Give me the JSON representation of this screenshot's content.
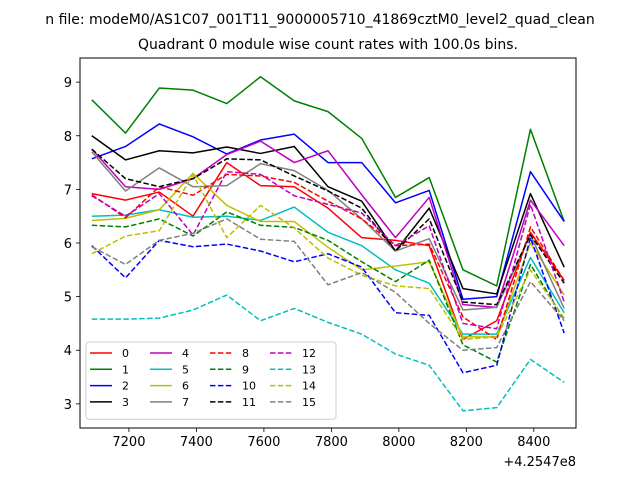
{
  "chart_data": {
    "type": "line",
    "suptitle": "n file: modeM0/AS1C07_001T11_9000005710_41869cztM0_level2_quad_clean",
    "title": "Quadrant 0 module wise count rates with 100.0s bins.",
    "xlabel": "",
    "ylabel": "",
    "x_offset_label": "+4.2547e8",
    "xlim": [
      7055,
      8525
    ],
    "ylim": [
      2.55,
      9.45
    ],
    "xticks": [
      7200,
      7400,
      7600,
      7800,
      8000,
      8200,
      8400
    ],
    "yticks": [
      3,
      4,
      5,
      6,
      7,
      8,
      9
    ],
    "grid": false,
    "legend": {
      "placement": "lower-left",
      "columns": 4
    },
    "x": [
      7090,
      7190,
      7290,
      7390,
      7490,
      7590,
      7690,
      7790,
      7890,
      7990,
      8090,
      8190,
      8290,
      8390,
      8490
    ],
    "series": [
      {
        "name": "0",
        "color": "#ff0000",
        "dash": "solid",
        "values": [
          6.92,
          6.8,
          6.95,
          6.5,
          7.5,
          7.07,
          7.05,
          6.65,
          6.1,
          6.05,
          5.95,
          4.2,
          4.55,
          6.2,
          5.3
        ]
      },
      {
        "name": "1",
        "color": "#008000",
        "dash": "solid",
        "values": [
          8.67,
          8.05,
          8.89,
          8.85,
          8.6,
          9.1,
          8.65,
          8.45,
          7.95,
          6.85,
          7.22,
          5.5,
          5.2,
          8.12,
          6.4
        ]
      },
      {
        "name": "2",
        "color": "#0000ff",
        "dash": "solid",
        "values": [
          7.57,
          7.8,
          8.22,
          7.98,
          7.66,
          7.92,
          8.03,
          7.5,
          7.5,
          6.75,
          6.98,
          4.95,
          5.0,
          7.33,
          6.4
        ]
      },
      {
        "name": "3",
        "color": "#000000",
        "dash": "solid",
        "values": [
          8.0,
          7.55,
          7.72,
          7.68,
          7.79,
          7.67,
          7.8,
          7.05,
          6.78,
          5.85,
          6.65,
          5.15,
          5.05,
          6.92,
          5.55
        ]
      },
      {
        "name": "4",
        "color": "#bf00bf",
        "dash": "solid",
        "values": [
          7.75,
          7.05,
          7.0,
          7.2,
          7.65,
          7.9,
          7.5,
          7.72,
          6.9,
          6.1,
          6.85,
          4.85,
          4.8,
          6.8,
          5.95
        ]
      },
      {
        "name": "5",
        "color": "#00bfbf",
        "dash": "solid",
        "values": [
          6.5,
          6.52,
          6.62,
          6.48,
          6.5,
          6.42,
          6.67,
          6.2,
          5.95,
          5.5,
          5.25,
          4.3,
          4.3,
          5.73,
          4.7
        ]
      },
      {
        "name": "6",
        "color": "#bfbf00",
        "dash": "solid",
        "values": [
          6.42,
          6.46,
          6.62,
          7.3,
          6.7,
          6.4,
          6.4,
          5.92,
          5.5,
          5.57,
          5.65,
          4.25,
          4.25,
          6.0,
          5.03
        ]
      },
      {
        "name": "7",
        "color": "#808080",
        "dash": "solid",
        "values": [
          7.7,
          6.97,
          7.4,
          7.05,
          7.07,
          7.48,
          7.35,
          6.98,
          6.45,
          5.85,
          6.08,
          4.75,
          4.8,
          6.15,
          4.78
        ]
      },
      {
        "name": "8",
        "color": "#ff0000",
        "dash": "dashed",
        "values": [
          6.9,
          6.47,
          7.05,
          6.89,
          7.28,
          7.25,
          7.13,
          6.78,
          6.45,
          5.95,
          5.98,
          4.62,
          4.2,
          6.3,
          5.3
        ]
      },
      {
        "name": "9",
        "color": "#008000",
        "dash": "dashed",
        "values": [
          6.33,
          6.3,
          6.45,
          6.13,
          6.58,
          6.33,
          6.29,
          6.05,
          5.65,
          5.28,
          5.68,
          4.1,
          3.78,
          5.6,
          4.57
        ]
      },
      {
        "name": "10",
        "color": "#0000ff",
        "dash": "dashed",
        "values": [
          5.95,
          5.35,
          6.05,
          5.93,
          5.98,
          5.85,
          5.65,
          5.8,
          5.55,
          4.7,
          4.65,
          3.58,
          3.72,
          6.1,
          4.32
        ]
      },
      {
        "name": "11",
        "color": "#000000",
        "dash": "dashed",
        "values": [
          7.75,
          7.2,
          7.05,
          7.2,
          7.57,
          7.55,
          7.25,
          6.97,
          6.65,
          5.85,
          6.45,
          4.9,
          4.85,
          6.15,
          5.25
        ]
      },
      {
        "name": "12",
        "color": "#bf00bf",
        "dash": "dashed",
        "values": [
          6.88,
          6.5,
          6.92,
          6.15,
          7.33,
          7.28,
          6.88,
          6.72,
          6.56,
          5.95,
          6.32,
          4.5,
          4.4,
          6.72,
          4.9
        ]
      },
      {
        "name": "13",
        "color": "#00bfbf",
        "dash": "dashed",
        "values": [
          4.58,
          4.58,
          4.6,
          4.75,
          5.03,
          4.55,
          4.78,
          4.52,
          4.3,
          3.93,
          3.72,
          2.87,
          2.93,
          3.83,
          3.4
        ]
      },
      {
        "name": "14",
        "color": "#bfbf00",
        "dash": "dashed",
        "values": [
          5.8,
          6.13,
          6.23,
          7.27,
          6.1,
          6.7,
          6.28,
          5.72,
          5.4,
          5.2,
          5.15,
          4.2,
          4.25,
          5.5,
          4.6
        ]
      },
      {
        "name": "15",
        "color": "#808080",
        "dash": "dashed",
        "values": [
          5.93,
          5.6,
          6.05,
          6.18,
          6.45,
          6.07,
          6.03,
          5.22,
          5.45,
          5.08,
          4.5,
          4.0,
          4.05,
          5.28,
          4.55
        ]
      }
    ]
  }
}
